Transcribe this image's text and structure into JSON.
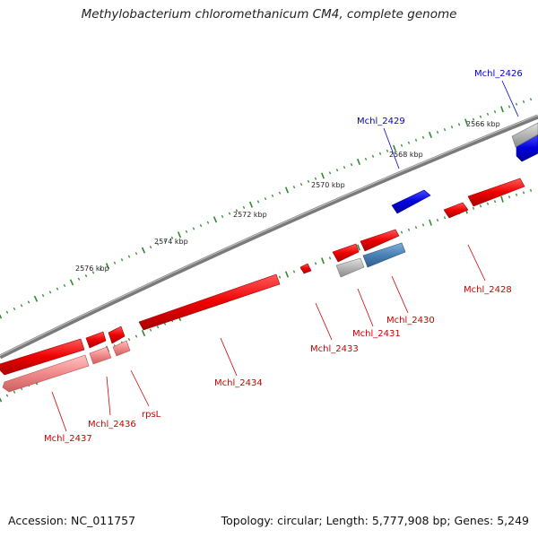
{
  "title": "Methylobacterium chloromethanicum CM4, complete genome",
  "footer": {
    "accession": "Accession: NC_011757",
    "summary": "Topology: circular; Length: 5,777,908 bp; Genes: 5,249"
  },
  "scale_labels": [
    "2566 kbp",
    "2568 kbp",
    "2570 kbp",
    "2572 kbp",
    "2574 kbp",
    "2576 kbp"
  ],
  "gene_labels": [
    {
      "name": "Mchl_2426",
      "color": "#0000cc"
    },
    {
      "name": "Mchl_2429",
      "color": "#0000cc"
    },
    {
      "name": "Mchl_2428",
      "color": "#cc0000"
    },
    {
      "name": "Mchl_2430",
      "color": "#cc0000"
    },
    {
      "name": "Mchl_2431",
      "color": "#cc0000"
    },
    {
      "name": "Mchl_2433",
      "color": "#cc0000"
    },
    {
      "name": "Mchl_2434",
      "color": "#cc0000"
    },
    {
      "name": "rpsL",
      "color": "#cc0000"
    },
    {
      "name": "Mchl_2436",
      "color": "#cc0000"
    },
    {
      "name": "Mchl_2437",
      "color": "#cc0000"
    }
  ],
  "colors": {
    "backbone": "#7a7a7a",
    "tick": "#2e8b2e",
    "gene_red": "#ee0000",
    "gene_blue": "#0000dd",
    "gene_steel": "#4a80b5",
    "gene_grey": "#b5b5b5",
    "gene_pink": "#f08a8a",
    "label_red": "#cc0000",
    "label_blue": "#0000cc"
  }
}
